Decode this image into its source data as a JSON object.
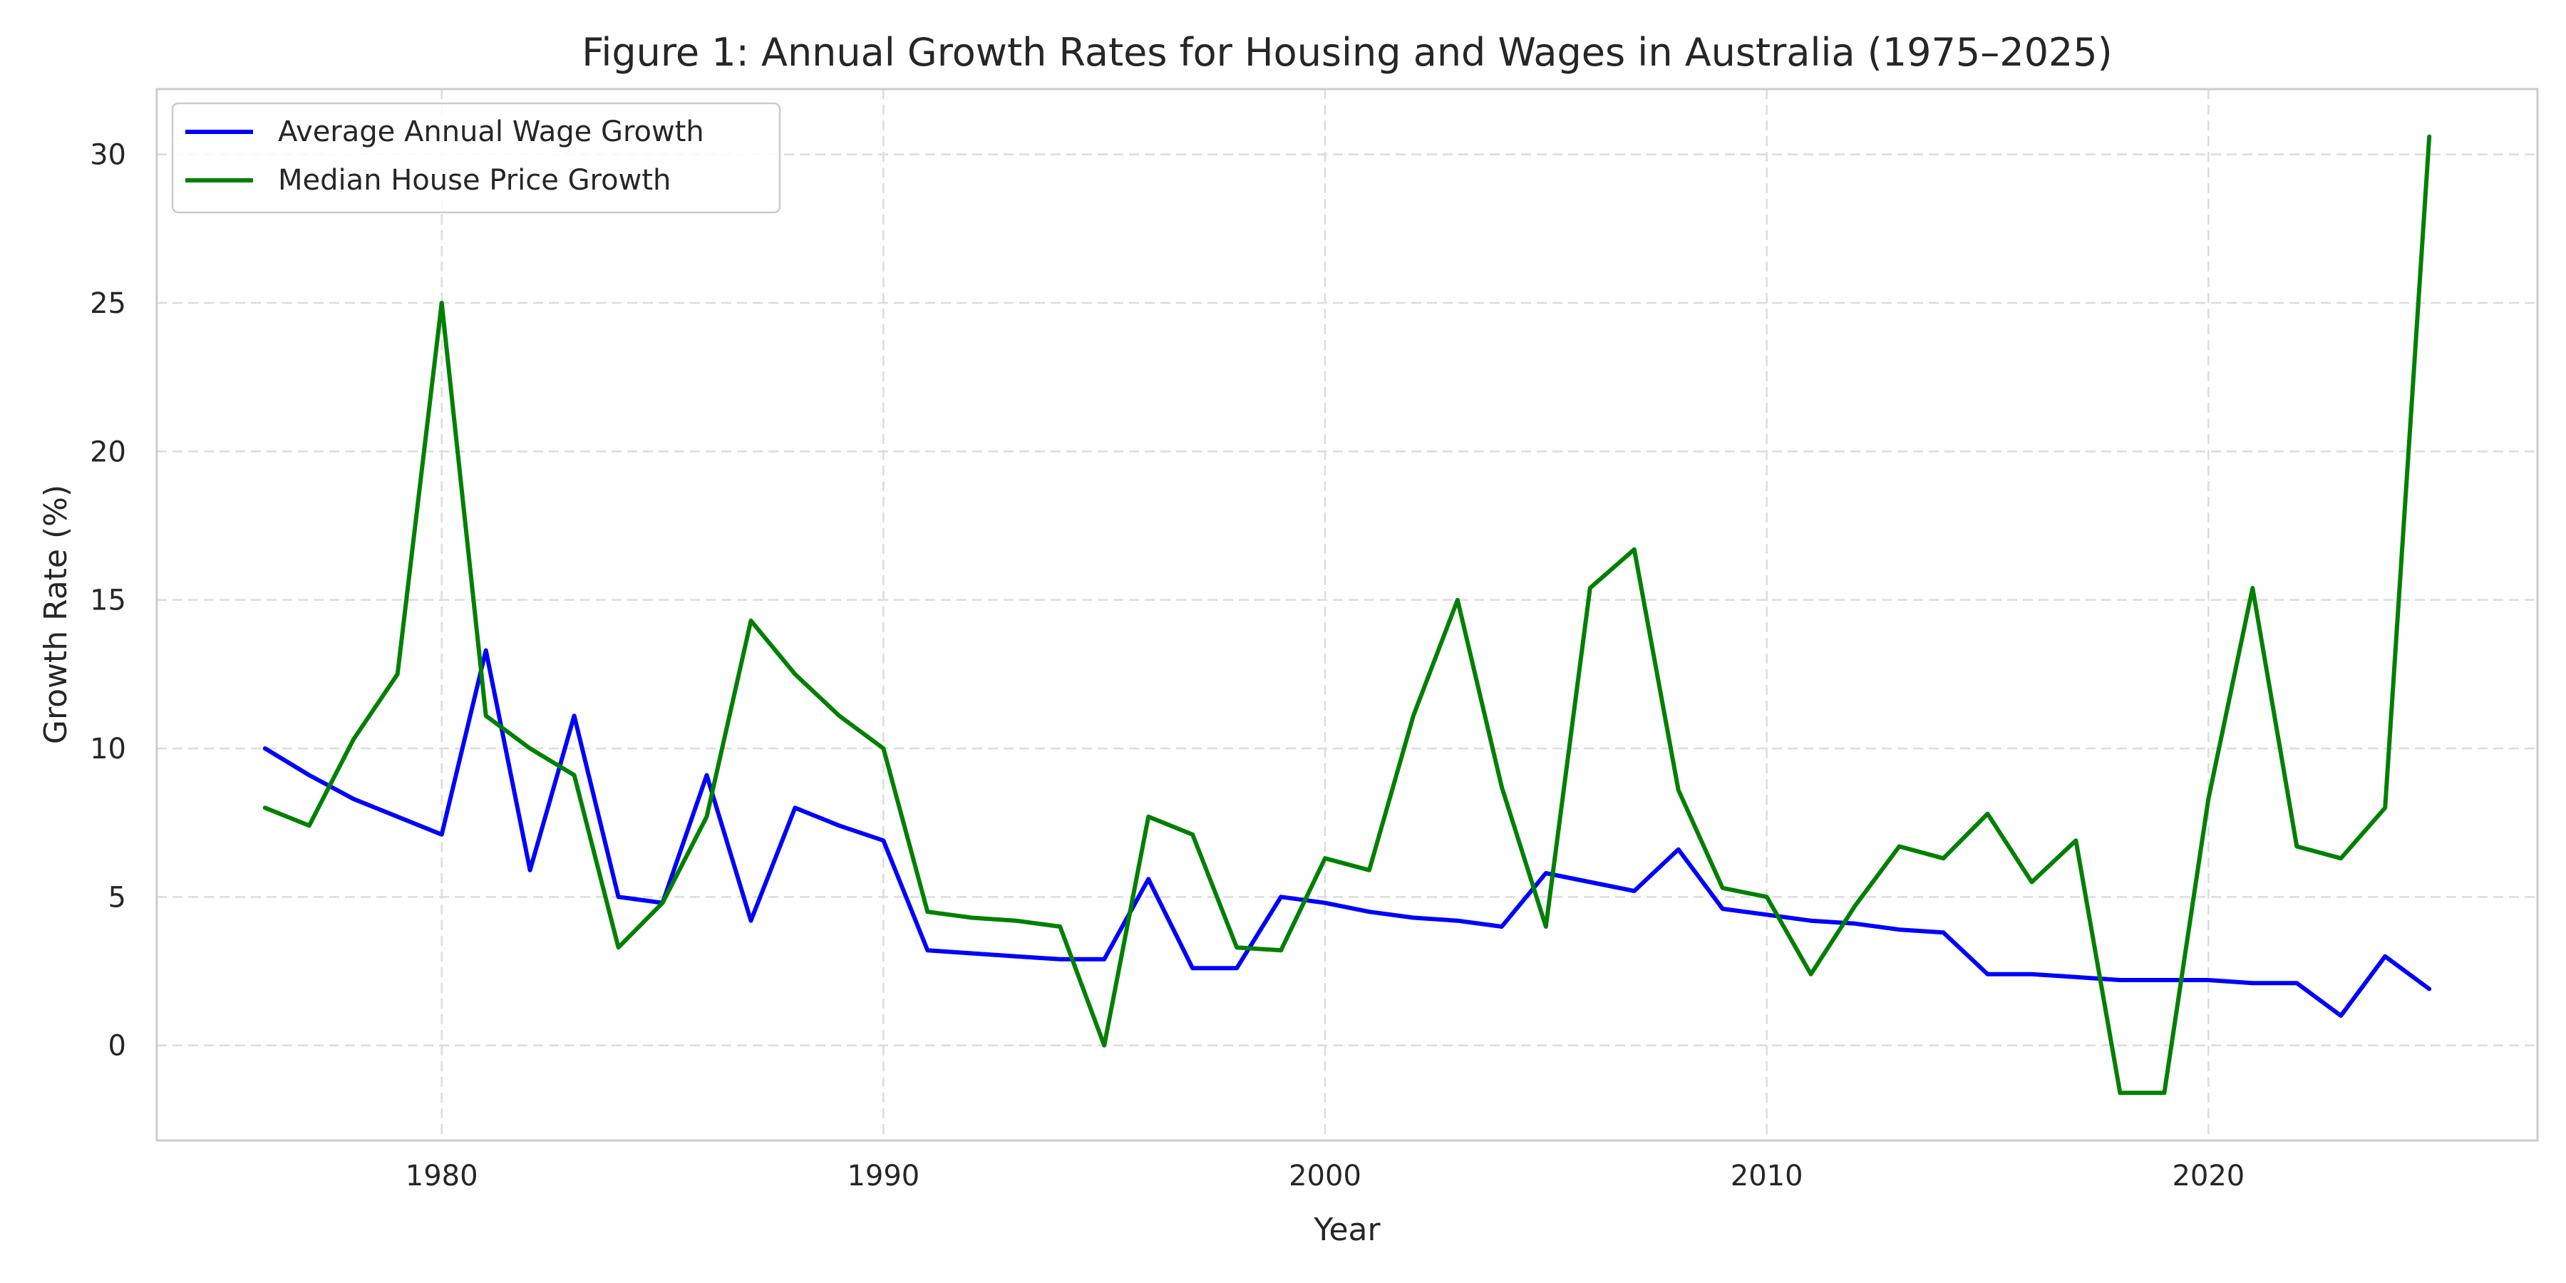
{
  "chart_data": {
    "type": "line",
    "title": "Figure 1: Annual Growth Rates for Housing and Wages in Australia (1975–2025)",
    "xlabel": "Year",
    "ylabel": "Growth Rate (%)",
    "xlim": [
      1973.55,
      1927.45
    ],
    "ylim": [
      -3.2,
      32.2
    ],
    "xticks": [
      1980,
      1990,
      2000,
      2010,
      2020
    ],
    "yticks": [
      0,
      5,
      10,
      15,
      20,
      25,
      30
    ],
    "grid": true,
    "legend_position": "top-left",
    "x": [
      1976,
      1977,
      1978,
      1979,
      1980,
      1981,
      1982,
      1983,
      1984,
      1985,
      1986,
      1987,
      1988,
      1989,
      1990,
      1991,
      1992,
      1993,
      1994,
      1995,
      1996,
      1997,
      1998,
      1999,
      2000,
      2001,
      2002,
      2003,
      2004,
      2005,
      2006,
      2007,
      2008,
      2009,
      2010,
      2011,
      2012,
      2013,
      2014,
      2015,
      2016,
      2017,
      2018,
      2019,
      2020,
      2021,
      2022,
      2023,
      2024,
      2025
    ],
    "series": [
      {
        "name": "Average Annual Wage Growth",
        "color": "#0000ff",
        "values": [
          10.0,
          9.1,
          8.3,
          7.7,
          7.1,
          13.3,
          5.9,
          11.1,
          5.0,
          4.8,
          9.1,
          4.2,
          8.0,
          7.4,
          6.9,
          3.2,
          3.1,
          3.0,
          2.9,
          2.9,
          5.6,
          2.6,
          2.6,
          5.0,
          4.8,
          4.5,
          4.3,
          4.2,
          4.0,
          5.8,
          5.5,
          5.2,
          6.6,
          4.6,
          4.4,
          4.2,
          4.1,
          3.9,
          3.8,
          2.4,
          2.4,
          2.3,
          2.2,
          2.2,
          2.2,
          2.1,
          2.1,
          1.0,
          3.0,
          1.9
        ]
      },
      {
        "name": "Median House Price Growth",
        "color": "#008000",
        "values": [
          8.0,
          7.4,
          10.3,
          12.5,
          25.0,
          11.1,
          10.0,
          9.1,
          3.3,
          4.8,
          7.7,
          14.3,
          12.5,
          11.1,
          10.0,
          4.5,
          4.3,
          4.2,
          4.0,
          0.0,
          7.7,
          7.1,
          3.3,
          3.2,
          6.3,
          5.9,
          11.1,
          15.0,
          8.7,
          4.0,
          15.4,
          16.7,
          8.6,
          5.3,
          5.0,
          2.4,
          4.7,
          6.7,
          6.3,
          7.8,
          5.5,
          6.9,
          -1.6,
          -1.6,
          8.3,
          15.4,
          6.7,
          6.3,
          8.0,
          30.6
        ]
      }
    ]
  }
}
